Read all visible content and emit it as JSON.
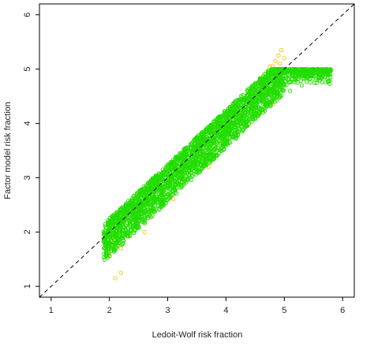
{
  "chart_data": {
    "type": "scatter",
    "title": "",
    "xlabel": "Ledoit-Wolf risk fraction",
    "ylabel": "Factor model risk fraction",
    "xlim": [
      0.8,
      6.2
    ],
    "ylim": [
      0.8,
      6.2
    ],
    "x_ticks": [
      "1",
      "2",
      "3",
      "4",
      "5",
      "6"
    ],
    "y_ticks": [
      "1",
      "2",
      "3",
      "4",
      "5",
      "6"
    ],
    "reference_line": {
      "style": "dashed",
      "slope": 1,
      "intercept": 0,
      "color": "#000000"
    },
    "grid": false,
    "legend": "none",
    "series": [
      {
        "color": "#f5c400",
        "marker": "open-circle",
        "points": [
          [
            2.0,
            1.95
          ],
          [
            2.05,
            1.85
          ],
          [
            2.1,
            1.9
          ],
          [
            2.0,
            1.75
          ],
          [
            2.1,
            1.7
          ],
          [
            2.02,
            1.65
          ],
          [
            2.2,
            1.7
          ],
          [
            2.0,
            1.55
          ],
          [
            2.2,
            1.25
          ],
          [
            2.1,
            1.15
          ],
          [
            2.35,
            1.95
          ],
          [
            2.5,
            2.1
          ],
          [
            2.7,
            2.3
          ],
          [
            2.9,
            2.55
          ],
          [
            3.0,
            2.7
          ],
          [
            3.2,
            2.9
          ],
          [
            3.4,
            3.1
          ],
          [
            3.6,
            3.3
          ],
          [
            3.8,
            3.45
          ],
          [
            4.0,
            3.65
          ],
          [
            4.2,
            3.85
          ],
          [
            4.4,
            4.0
          ],
          [
            4.6,
            4.2
          ],
          [
            4.8,
            4.35
          ],
          [
            4.9,
            4.55
          ],
          [
            4.8,
            5.05
          ],
          [
            4.85,
            5.15
          ],
          [
            4.9,
            5.25
          ],
          [
            4.95,
            5.35
          ],
          [
            4.92,
            5.1
          ],
          [
            4.75,
            5.05
          ],
          [
            5.0,
            5.2
          ],
          [
            4.88,
            4.5
          ],
          [
            3.1,
            2.6
          ],
          [
            2.6,
            2.0
          ],
          [
            3.7,
            3.2
          ]
        ]
      },
      {
        "color": "#22dd00",
        "marker": "open-circle",
        "band": {
          "x_from": 1.9,
          "x_to": 5.0,
          "y_offset_min": -0.45,
          "y_offset_max": 0.25,
          "cap": 5.0
        },
        "points": [
          [
            1.9,
            2.0
          ],
          [
            2.0,
            2.05
          ],
          [
            2.3,
            2.25
          ],
          [
            2.6,
            2.5
          ],
          [
            3.0,
            2.85
          ],
          [
            3.3,
            3.2
          ],
          [
            3.6,
            3.5
          ],
          [
            4.0,
            3.85
          ],
          [
            4.3,
            4.15
          ],
          [
            4.6,
            4.5
          ],
          [
            4.9,
            4.8
          ],
          [
            5.0,
            5.0
          ],
          [
            5.2,
            5.0
          ],
          [
            5.4,
            5.0
          ],
          [
            5.5,
            4.95
          ],
          [
            5.6,
            4.9
          ],
          [
            5.7,
            4.85
          ],
          [
            5.8,
            4.97
          ],
          [
            5.3,
            4.7
          ],
          [
            5.1,
            4.6
          ],
          [
            3.0,
            2.6
          ],
          [
            3.8,
            3.4
          ],
          [
            4.5,
            4.1
          ],
          [
            2.5,
            2.1
          ]
        ]
      }
    ]
  }
}
